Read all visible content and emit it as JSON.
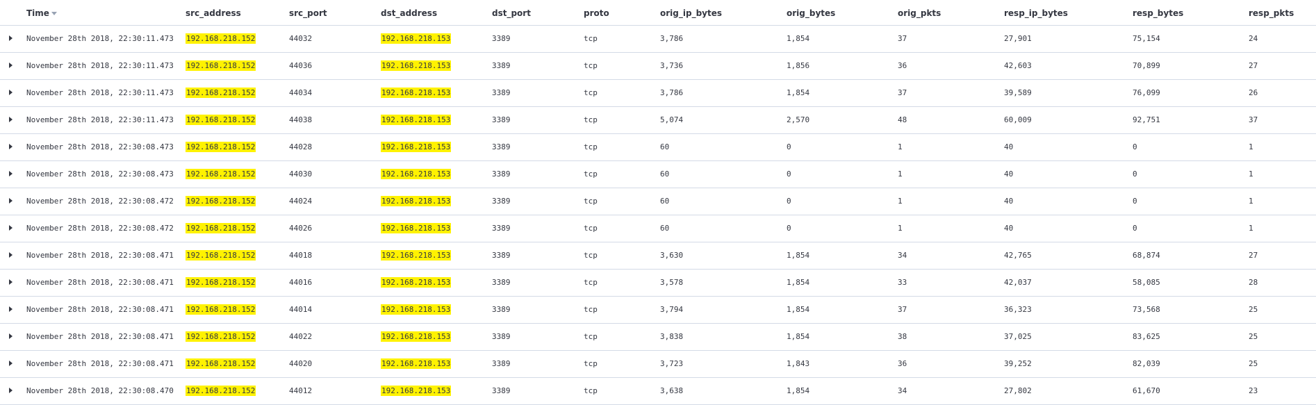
{
  "table": {
    "columns": {
      "time": "Time",
      "src_address": "src_address",
      "src_port": "src_port",
      "dst_address": "dst_address",
      "dst_port": "dst_port",
      "proto": "proto",
      "orig_ip_bytes": "orig_ip_bytes",
      "orig_bytes": "orig_bytes",
      "orig_pkts": "orig_pkts",
      "resp_ip_bytes": "resp_ip_bytes",
      "resp_bytes": "resp_bytes",
      "resp_pkts": "resp_pkts"
    },
    "highlight_color": "#fff200",
    "rows": [
      {
        "time": "November 28th 2018, 22:30:11.473",
        "src_address": "192.168.218.152",
        "src_port": "44032",
        "dst_address": "192.168.218.153",
        "dst_port": "3389",
        "proto": "tcp",
        "orig_ip_bytes": "3,786",
        "orig_bytes": "1,854",
        "orig_pkts": "37",
        "resp_ip_bytes": "27,901",
        "resp_bytes": "75,154",
        "resp_pkts": "24"
      },
      {
        "time": "November 28th 2018, 22:30:11.473",
        "src_address": "192.168.218.152",
        "src_port": "44036",
        "dst_address": "192.168.218.153",
        "dst_port": "3389",
        "proto": "tcp",
        "orig_ip_bytes": "3,736",
        "orig_bytes": "1,856",
        "orig_pkts": "36",
        "resp_ip_bytes": "42,603",
        "resp_bytes": "70,899",
        "resp_pkts": "27"
      },
      {
        "time": "November 28th 2018, 22:30:11.473",
        "src_address": "192.168.218.152",
        "src_port": "44034",
        "dst_address": "192.168.218.153",
        "dst_port": "3389",
        "proto": "tcp",
        "orig_ip_bytes": "3,786",
        "orig_bytes": "1,854",
        "orig_pkts": "37",
        "resp_ip_bytes": "39,589",
        "resp_bytes": "76,099",
        "resp_pkts": "26"
      },
      {
        "time": "November 28th 2018, 22:30:11.473",
        "src_address": "192.168.218.152",
        "src_port": "44038",
        "dst_address": "192.168.218.153",
        "dst_port": "3389",
        "proto": "tcp",
        "orig_ip_bytes": "5,074",
        "orig_bytes": "2,570",
        "orig_pkts": "48",
        "resp_ip_bytes": "60,009",
        "resp_bytes": "92,751",
        "resp_pkts": "37"
      },
      {
        "time": "November 28th 2018, 22:30:08.473",
        "src_address": "192.168.218.152",
        "src_port": "44028",
        "dst_address": "192.168.218.153",
        "dst_port": "3389",
        "proto": "tcp",
        "orig_ip_bytes": "60",
        "orig_bytes": "0",
        "orig_pkts": "1",
        "resp_ip_bytes": "40",
        "resp_bytes": "0",
        "resp_pkts": "1"
      },
      {
        "time": "November 28th 2018, 22:30:08.473",
        "src_address": "192.168.218.152",
        "src_port": "44030",
        "dst_address": "192.168.218.153",
        "dst_port": "3389",
        "proto": "tcp",
        "orig_ip_bytes": "60",
        "orig_bytes": "0",
        "orig_pkts": "1",
        "resp_ip_bytes": "40",
        "resp_bytes": "0",
        "resp_pkts": "1"
      },
      {
        "time": "November 28th 2018, 22:30:08.472",
        "src_address": "192.168.218.152",
        "src_port": "44024",
        "dst_address": "192.168.218.153",
        "dst_port": "3389",
        "proto": "tcp",
        "orig_ip_bytes": "60",
        "orig_bytes": "0",
        "orig_pkts": "1",
        "resp_ip_bytes": "40",
        "resp_bytes": "0",
        "resp_pkts": "1"
      },
      {
        "time": "November 28th 2018, 22:30:08.472",
        "src_address": "192.168.218.152",
        "src_port": "44026",
        "dst_address": "192.168.218.153",
        "dst_port": "3389",
        "proto": "tcp",
        "orig_ip_bytes": "60",
        "orig_bytes": "0",
        "orig_pkts": "1",
        "resp_ip_bytes": "40",
        "resp_bytes": "0",
        "resp_pkts": "1"
      },
      {
        "time": "November 28th 2018, 22:30:08.471",
        "src_address": "192.168.218.152",
        "src_port": "44018",
        "dst_address": "192.168.218.153",
        "dst_port": "3389",
        "proto": "tcp",
        "orig_ip_bytes": "3,630",
        "orig_bytes": "1,854",
        "orig_pkts": "34",
        "resp_ip_bytes": "42,765",
        "resp_bytes": "68,874",
        "resp_pkts": "27"
      },
      {
        "time": "November 28th 2018, 22:30:08.471",
        "src_address": "192.168.218.152",
        "src_port": "44016",
        "dst_address": "192.168.218.153",
        "dst_port": "3389",
        "proto": "tcp",
        "orig_ip_bytes": "3,578",
        "orig_bytes": "1,854",
        "orig_pkts": "33",
        "resp_ip_bytes": "42,037",
        "resp_bytes": "58,085",
        "resp_pkts": "28"
      },
      {
        "time": "November 28th 2018, 22:30:08.471",
        "src_address": "192.168.218.152",
        "src_port": "44014",
        "dst_address": "192.168.218.153",
        "dst_port": "3389",
        "proto": "tcp",
        "orig_ip_bytes": "3,794",
        "orig_bytes": "1,854",
        "orig_pkts": "37",
        "resp_ip_bytes": "36,323",
        "resp_bytes": "73,568",
        "resp_pkts": "25"
      },
      {
        "time": "November 28th 2018, 22:30:08.471",
        "src_address": "192.168.218.152",
        "src_port": "44022",
        "dst_address": "192.168.218.153",
        "dst_port": "3389",
        "proto": "tcp",
        "orig_ip_bytes": "3,838",
        "orig_bytes": "1,854",
        "orig_pkts": "38",
        "resp_ip_bytes": "37,025",
        "resp_bytes": "83,625",
        "resp_pkts": "25"
      },
      {
        "time": "November 28th 2018, 22:30:08.471",
        "src_address": "192.168.218.152",
        "src_port": "44020",
        "dst_address": "192.168.218.153",
        "dst_port": "3389",
        "proto": "tcp",
        "orig_ip_bytes": "3,723",
        "orig_bytes": "1,843",
        "orig_pkts": "36",
        "resp_ip_bytes": "39,252",
        "resp_bytes": "82,039",
        "resp_pkts": "25"
      },
      {
        "time": "November 28th 2018, 22:30:08.470",
        "src_address": "192.168.218.152",
        "src_port": "44012",
        "dst_address": "192.168.218.153",
        "dst_port": "3389",
        "proto": "tcp",
        "orig_ip_bytes": "3,638",
        "orig_bytes": "1,854",
        "orig_pkts": "34",
        "resp_ip_bytes": "27,802",
        "resp_bytes": "61,670",
        "resp_pkts": "23"
      }
    ]
  }
}
